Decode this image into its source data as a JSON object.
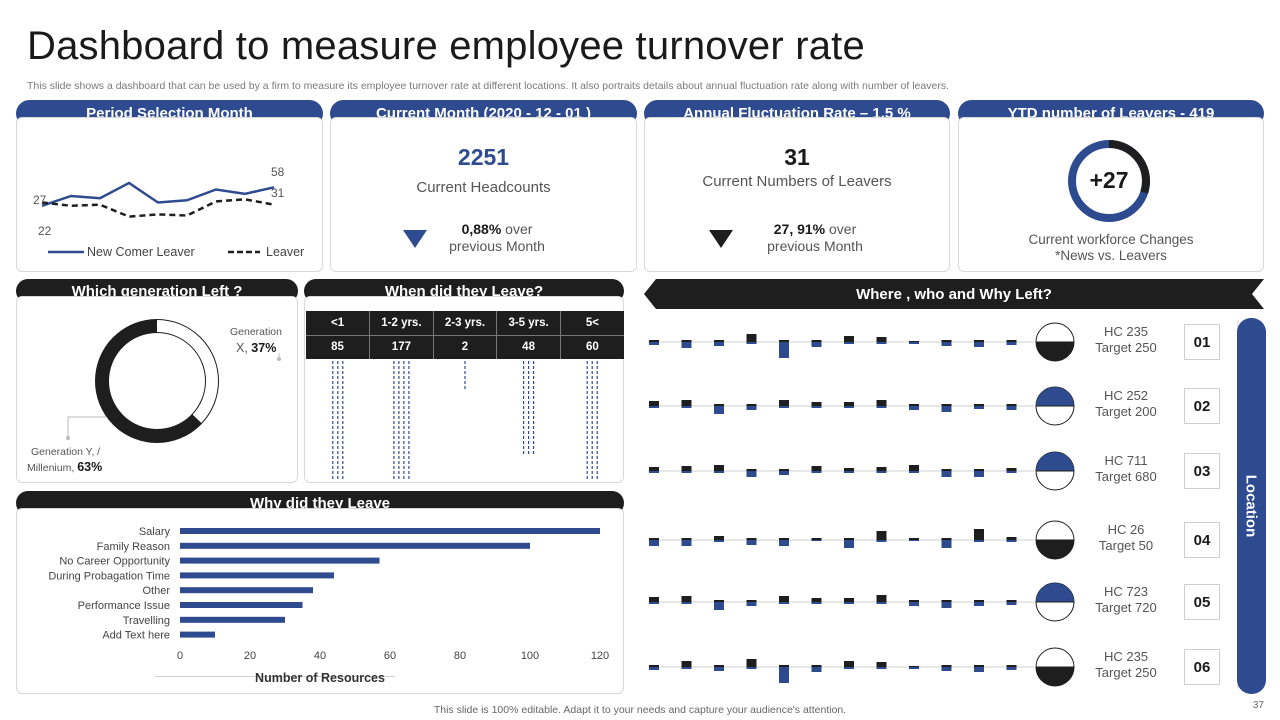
{
  "page": {
    "title": "Dashboard to measure employee turnover rate",
    "subtitle": "This slide shows a dashboard that can be used by a firm to measure its employee turnover rate at different locations. It also portraits details about annual fluctuation rate along with number of leavers.",
    "footer": "This slide is 100% editable. Adapt it to your needs and capture your audience's attention.",
    "page_number": "37"
  },
  "colors": {
    "blue": "#2e4b8f",
    "dark": "#1e1e1e",
    "light": "#ffffff"
  },
  "headers": {
    "period": "Period Selection Month",
    "current_month": "Current Month (2020 - 12 - 01 )",
    "fluctuation": "Annual Fluctuation Rate – 1,5 %",
    "ytd": "YTD number of Leavers - 419",
    "generation": "Which generation Left ?",
    "when": "When did they Leave?",
    "where": "Where , who and Why Left?",
    "why": "Why did they Leave"
  },
  "period_chart": {
    "label_top": "58",
    "label_31": "31",
    "label_27": "27",
    "label_22": "22",
    "legend_newcomer": "New Comer Leaver",
    "legend_leaver": "Leaver",
    "series_newcomer": [
      27,
      36,
      34,
      48,
      30,
      32,
      42,
      38,
      44
    ],
    "series_leaver": [
      30,
      27,
      28,
      17,
      19,
      18,
      31,
      33,
      28
    ],
    "ymax": 60
  },
  "current_month": {
    "value": "2251",
    "label": "Current Headcounts",
    "change_value": "0,88%",
    "change_suffix": " over",
    "change_label": "previous Month"
  },
  "fluctuation": {
    "value": "31",
    "label": "Current Numbers of Leavers",
    "change_value": "27, 91%",
    "change_suffix": " over",
    "change_label": "previous Month"
  },
  "ytd": {
    "value": "+27",
    "label_line1": "Current workforce Changes",
    "label_line2": "*News vs. Leavers",
    "ring_fraction": 0.3
  },
  "generation": {
    "x_label_line1": "Generation",
    "x_label_line2": "X,",
    "x_value": "37%",
    "y_label_line1": "Generation Y, /",
    "y_label_line2": "Millenium,",
    "y_value": "63%",
    "x_fraction": 0.37
  },
  "when": {
    "headers": [
      "<1",
      "1-2 yrs.",
      "2-3 yrs.",
      "3-5 yrs.",
      "5<"
    ],
    "values": [
      "85",
      "177",
      "2",
      "48",
      "60"
    ]
  },
  "why": {
    "categories": [
      "Salary",
      "Family Reason",
      "No Career Opportunity",
      "During Probagation Time",
      "Other",
      "Performance Issue",
      "Travelling",
      "Add Text here"
    ],
    "values": [
      120,
      100,
      57,
      44,
      38,
      35,
      30,
      10
    ],
    "x_ticks": [
      "0",
      "20",
      "40",
      "60",
      "80",
      "100",
      "120"
    ],
    "x_max": 120,
    "xlabel": "Number of Resources"
  },
  "locations": [
    {
      "id": "01",
      "hc": "HC 235",
      "target": "Target  250",
      "ratio": 0.94,
      "bars": [
        -3,
        -6,
        -4,
        8,
        -16,
        -5,
        6,
        5,
        1,
        -4,
        -5,
        -3
      ]
    },
    {
      "id": "02",
      "hc": "HC 252",
      "target": "Target  200",
      "ratio": 1.26,
      "bars": [
        5,
        6,
        -8,
        -4,
        6,
        4,
        4,
        6,
        -4,
        -6,
        -3,
        -4
      ]
    },
    {
      "id": "03",
      "hc": "HC 711",
      "target": "Target  680",
      "ratio": 1.05,
      "bars": [
        4,
        5,
        6,
        -6,
        -4,
        5,
        3,
        4,
        6,
        -6,
        -6,
        3
      ]
    },
    {
      "id": "04",
      "hc": "HC 26",
      "target": "Target  50",
      "ratio": 0.52,
      "bars": [
        -6,
        -6,
        4,
        -5,
        -6,
        0,
        -8,
        9,
        0,
        -8,
        11,
        3
      ]
    },
    {
      "id": "05",
      "hc": "HC 723",
      "target": "Target  720",
      "ratio": 1.0,
      "bars": [
        5,
        6,
        -8,
        -4,
        6,
        4,
        4,
        7,
        -4,
        -6,
        -4,
        -3
      ]
    },
    {
      "id": "06",
      "hc": "HC 235",
      "target": "Target  250",
      "ratio": 0.94,
      "bars": [
        -3,
        6,
        -4,
        8,
        -16,
        -5,
        6,
        5,
        1,
        -4,
        -5,
        -3
      ]
    }
  ],
  "location_label": "Location"
}
